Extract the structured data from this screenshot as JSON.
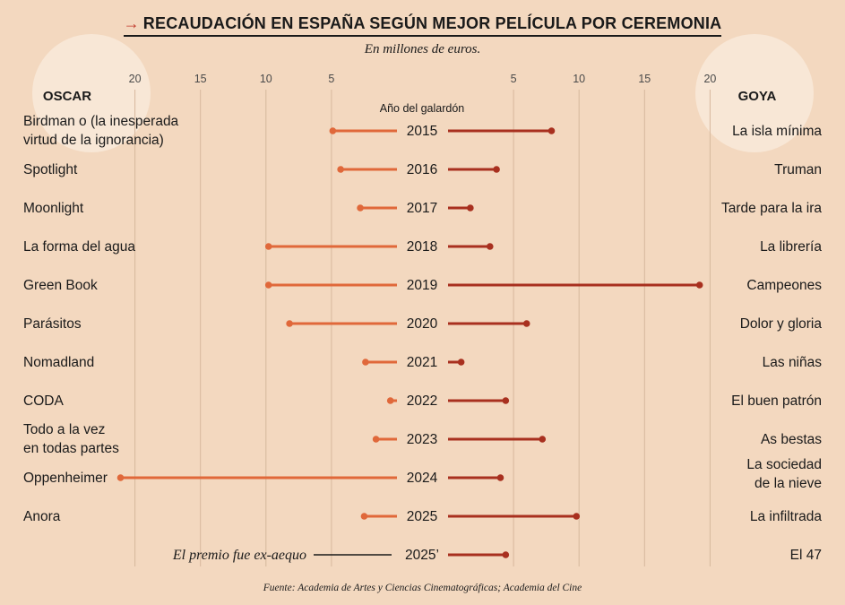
{
  "header": {
    "arrow": "→",
    "title": "RECAUDACIÓN EN ESPAÑA SEGÚN MEJOR PELÍCULA POR CEREMONIA",
    "subtitle": "En millones de euros."
  },
  "source": "Fuente: Academia de Artes y Ciencias Cinematográficas; Academia del Cine",
  "colors": {
    "background": "#f3d8bf",
    "oscar": "#e0683a",
    "goya": "#a8301f",
    "gridline": "#d6b89d",
    "circle": "#f8e7d6"
  },
  "chart_data": {
    "type": "bar",
    "left_heading": "OSCAR",
    "right_heading": "GOYA",
    "center_heading": "Año del galardón",
    "x_ticks_left": [
      20,
      15,
      10,
      5
    ],
    "x_ticks_right": [
      5,
      10,
      15,
      20
    ],
    "xlim": [
      0,
      20
    ],
    "grid": true,
    "rows": [
      {
        "year": "2015",
        "oscar": "Birdman o (la inesperada virtud de la ignorancia)",
        "oscar_lines": [
          "Birdman o (la inesperada",
          "virtud de la ignorancia)"
        ],
        "goya": "La isla mínima",
        "goya_lines": [
          "La isla mínima"
        ],
        "oscar_value": 4.9,
        "goya_value": 7.9
      },
      {
        "year": "2016",
        "oscar": "Spotlight",
        "oscar_lines": [
          "Spotlight"
        ],
        "goya": "Truman",
        "goya_lines": [
          "Truman"
        ],
        "oscar_value": 4.3,
        "goya_value": 3.7
      },
      {
        "year": "2017",
        "oscar": "Moonlight",
        "oscar_lines": [
          "Moonlight"
        ],
        "goya": "Tarde para la ira",
        "goya_lines": [
          "Tarde para la ira"
        ],
        "oscar_value": 2.8,
        "goya_value": 1.7
      },
      {
        "year": "2018",
        "oscar": "La forma del agua",
        "oscar_lines": [
          "La forma del agua"
        ],
        "goya": "La librería",
        "goya_lines": [
          "La librería"
        ],
        "oscar_value": 9.8,
        "goya_value": 3.2
      },
      {
        "year": "2019",
        "oscar": "Green Book",
        "oscar_lines": [
          "Green Book"
        ],
        "goya": "Campeones",
        "goya_lines": [
          "Campeones"
        ],
        "oscar_value": 9.8,
        "goya_value": 19.2
      },
      {
        "year": "2020",
        "oscar": "Parásitos",
        "oscar_lines": [
          "Parásitos"
        ],
        "goya": "Dolor y gloria",
        "goya_lines": [
          "Dolor y gloria"
        ],
        "oscar_value": 8.2,
        "goya_value": 6.0
      },
      {
        "year": "2021",
        "oscar": "Nomadland",
        "oscar_lines": [
          "Nomadland"
        ],
        "goya": "Las niñas",
        "goya_lines": [
          "Las niñas"
        ],
        "oscar_value": 2.4,
        "goya_value": 1.0
      },
      {
        "year": "2022",
        "oscar": "CODA",
        "oscar_lines": [
          "CODA"
        ],
        "goya": "El buen patrón",
        "goya_lines": [
          "El buen patrón"
        ],
        "oscar_value": 0.5,
        "goya_value": 4.4
      },
      {
        "year": "2023",
        "oscar": "Todo a la vez en todas partes",
        "oscar_lines": [
          "Todo a la vez",
          "en todas partes"
        ],
        "goya": "As bestas",
        "goya_lines": [
          "As bestas"
        ],
        "oscar_value": 1.6,
        "goya_value": 7.2
      },
      {
        "year": "2024",
        "oscar": "Oppenheimer",
        "oscar_lines": [
          "Oppenheimer"
        ],
        "goya": "La sociedad de la nieve",
        "goya_lines": [
          "La sociedad",
          "de la nieve"
        ],
        "oscar_value": 21.1,
        "goya_value": 4.0
      },
      {
        "year": "2025",
        "oscar": "Anora",
        "oscar_lines": [
          "Anora"
        ],
        "goya": "La infiltrada",
        "goya_lines": [
          "La infiltrada"
        ],
        "oscar_value": 2.5,
        "goya_value": 9.8
      },
      {
        "year": "2025’",
        "oscar": null,
        "oscar_lines": [],
        "goya": "El 47",
        "goya_lines": [
          "El 47"
        ],
        "oscar_value": null,
        "goya_value": 4.4,
        "note": "El premio fue ex-aequo"
      }
    ]
  }
}
